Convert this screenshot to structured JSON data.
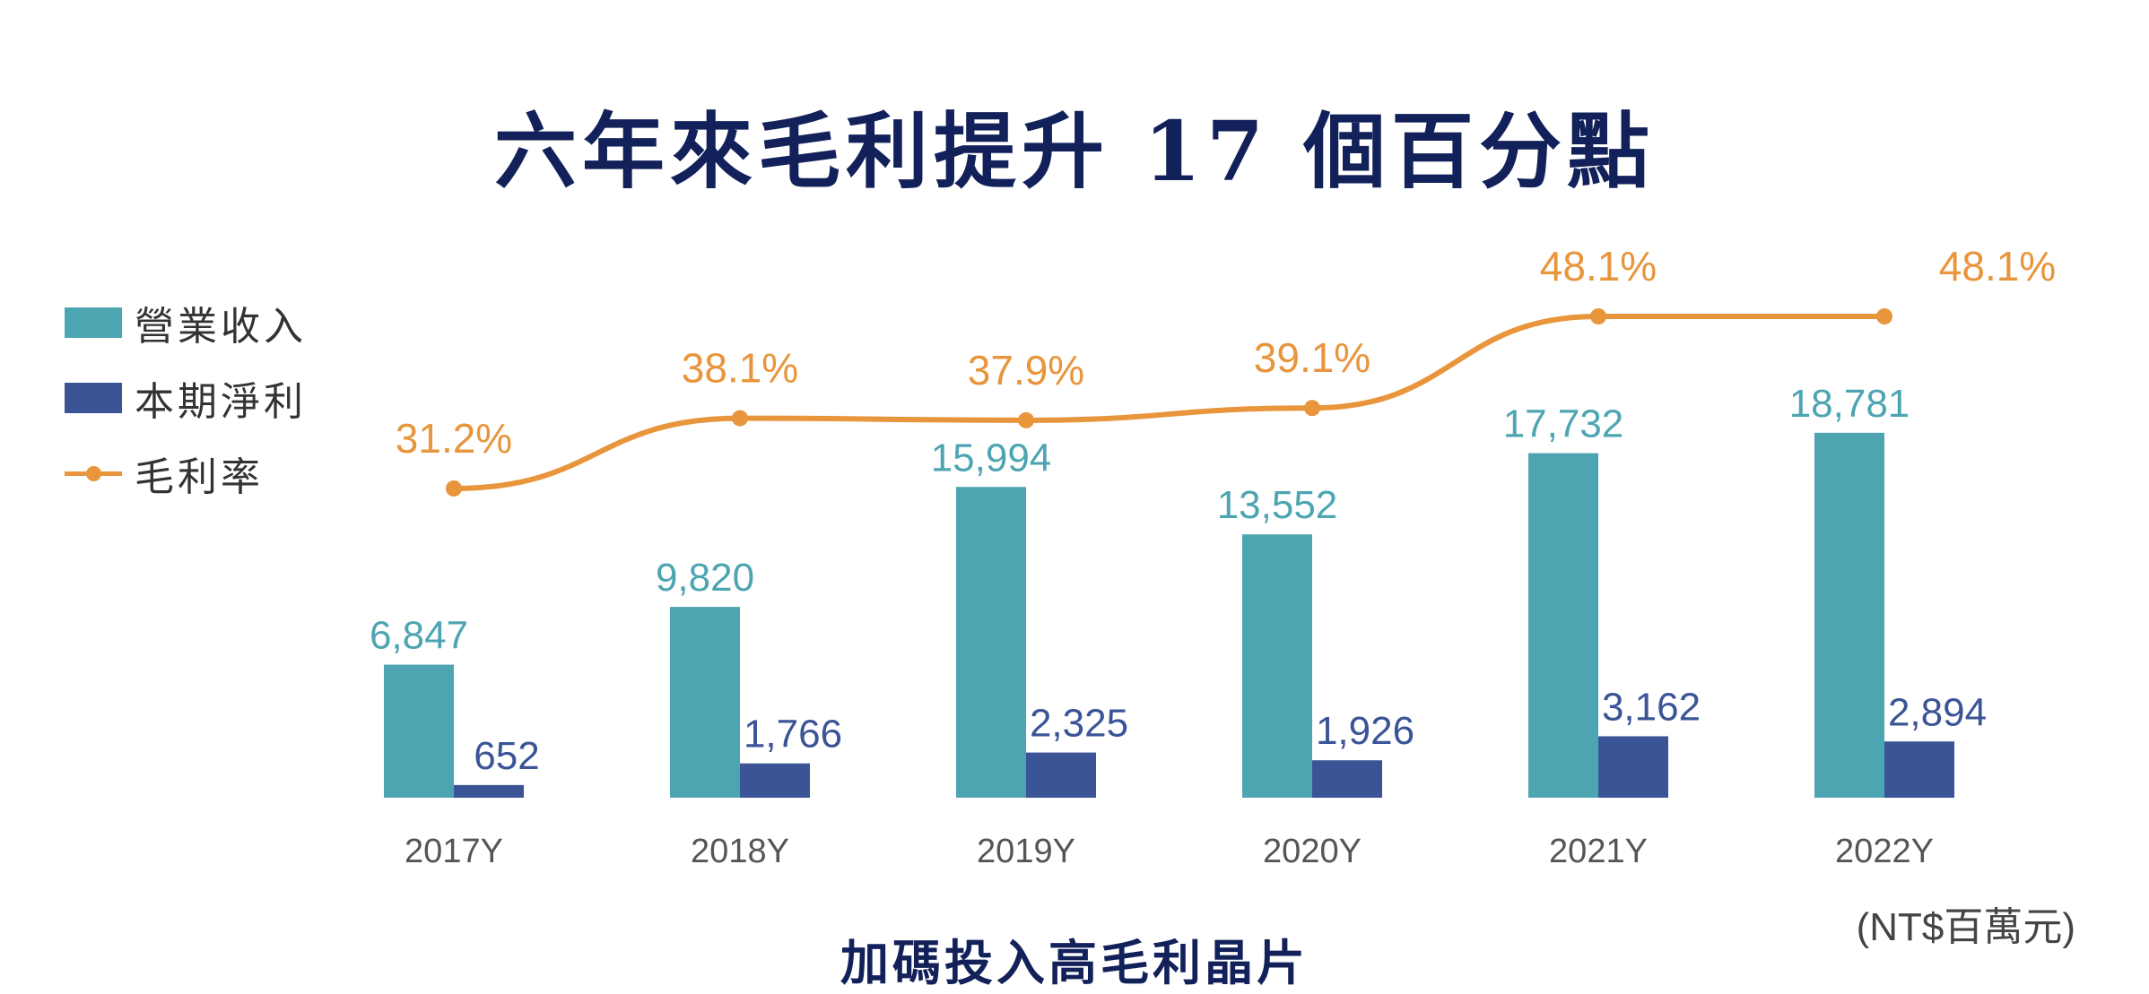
{
  "title": "六年來毛利提升 17 個百分點",
  "subtitle": "加碼投入高毛利晶片",
  "unit": "(NT$百萬元)",
  "colors": {
    "revenue": "#4ea5b2",
    "net_income": "#3a5496",
    "margin": "#e8953c",
    "title": "#13215a"
  },
  "legend": [
    {
      "label": "營業收入",
      "type": "swatch",
      "color_key": "revenue"
    },
    {
      "label": "本期淨利",
      "type": "swatch",
      "color_key": "net_income"
    },
    {
      "label": "毛利率",
      "type": "line",
      "color_key": "margin"
    }
  ],
  "chart_data": {
    "type": "bar",
    "categories": [
      "2017Y",
      "2018Y",
      "2019Y",
      "2020Y",
      "2021Y",
      "2022Y"
    ],
    "series": [
      {
        "name": "營業收入",
        "values": [
          6847,
          9820,
          15994,
          13552,
          17732,
          18781
        ],
        "labels": [
          "6,847",
          "9,820",
          "15,994",
          "13,552",
          "17,732",
          "18,781"
        ]
      },
      {
        "name": "本期淨利",
        "values": [
          652,
          1766,
          2325,
          1926,
          3162,
          2894
        ],
        "labels": [
          "652",
          "1,766",
          "2,325",
          "1,926",
          "3,162",
          "2,894"
        ]
      }
    ],
    "line_series": {
      "name": "毛利率",
      "type": "line",
      "values": [
        31.2,
        38.1,
        37.9,
        39.1,
        48.1,
        48.1
      ],
      "labels": [
        "31.2%",
        "38.1%",
        "37.9%",
        "39.1%",
        "48.1%",
        "48.1%"
      ]
    },
    "legend_position": "left",
    "grid": false
  }
}
